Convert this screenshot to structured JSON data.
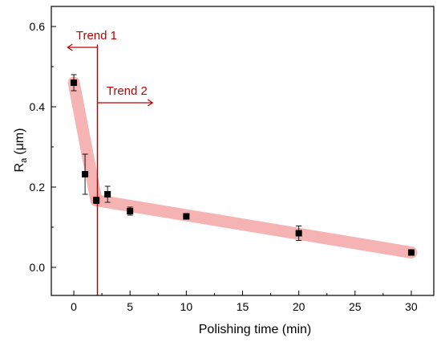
{
  "chart_data": {
    "type": "scatter",
    "xlabel": "Polishing time (min)",
    "ylabel_main": "R",
    "ylabel_sub": "a",
    "ylabel_unit": "(μm)",
    "xlim": [
      -2,
      32
    ],
    "ylim": [
      -0.07,
      0.65
    ],
    "xticks": [
      0,
      5,
      10,
      15,
      20,
      25,
      30
    ],
    "yticks": [
      0.0,
      0.2,
      0.4,
      0.6
    ],
    "ytick_labels": [
      "0.0",
      "0.2",
      "0.4",
      "0.6"
    ],
    "grid": false,
    "legend": "none",
    "series": [
      {
        "x": [
          0,
          1,
          2,
          3,
          5,
          10,
          20,
          30
        ],
        "y": [
          0.46,
          0.232,
          0.167,
          0.182,
          0.14,
          0.127,
          0.085,
          0.037
        ],
        "err": [
          0.02,
          0.05,
          0.008,
          0.02,
          0.01,
          0.004,
          0.018,
          0.004
        ],
        "marker_color": "#000000"
      }
    ],
    "trend_bands": [
      {
        "points": [
          [
            0,
            0.46
          ],
          [
            2,
            0.167
          ]
        ],
        "color": "#f4a6a6"
      },
      {
        "points": [
          [
            2,
            0.167
          ],
          [
            30,
            0.037
          ]
        ],
        "color": "#f4a6a6"
      }
    ],
    "annotations": [
      {
        "label": "Trend 1",
        "direction": "left",
        "color": "#c00000"
      },
      {
        "label": "Trend 2",
        "direction": "right",
        "color": "#c00000"
      }
    ],
    "vline": {
      "x": 2.1,
      "color": "#c00000"
    }
  }
}
